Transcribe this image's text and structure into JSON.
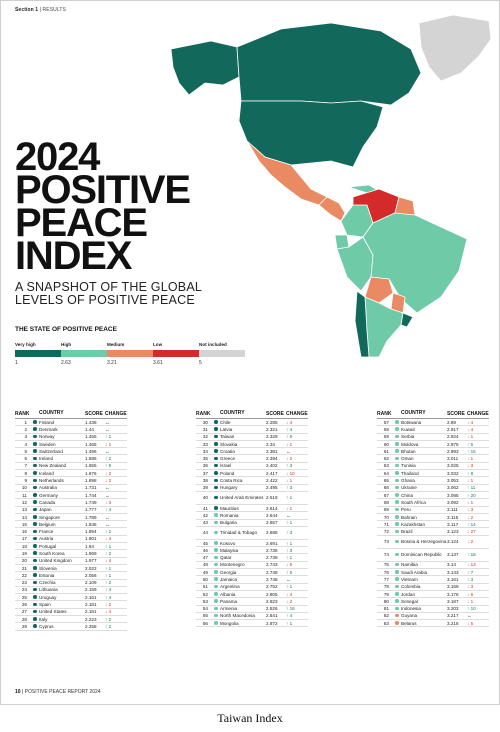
{
  "header": {
    "section": "Section 1",
    "separator": "|",
    "name": "RESULTS"
  },
  "title": {
    "line1": "2024",
    "line2": "POSITIVE",
    "line3": "PEACE",
    "line4": "INDEX"
  },
  "subtitle": {
    "line1": "A SNAPSHOT OF THE GLOBAL",
    "line2": "LEVELS OF POSITIVE PEACE"
  },
  "state_header": "THE STATE OF POSITIVE PEACE",
  "legend": {
    "labels": [
      "Very high",
      "High",
      "Medium",
      "Low",
      "Not included"
    ],
    "colors": [
      "#12695b",
      "#6fcaa8",
      "#e98a63",
      "#d42a2a",
      "#d4d4d4"
    ],
    "values": [
      "1",
      "2.63",
      "3.21",
      "3.61",
      "5"
    ]
  },
  "table_headers": {
    "rank": "RANK",
    "country": "COUNTRY",
    "score": "SCORE",
    "change": "CHANGE"
  },
  "columns": [
    [
      {
        "rank": "1",
        "country": "Finland",
        "score": "1.438",
        "change": "↔",
        "dir": "eq",
        "tier": 0
      },
      {
        "rank": "2",
        "country": "Denmark",
        "score": "1.44",
        "change": "↔",
        "dir": "eq",
        "tier": 0
      },
      {
        "rank": "3",
        "country": "Norway",
        "score": "1.455",
        "change": "↑ 1",
        "dir": "up",
        "tier": 0
      },
      {
        "rank": "4",
        "country": "Sweden",
        "score": "1.465",
        "change": "↓ 1",
        "dir": "down",
        "tier": 0
      },
      {
        "rank": "5",
        "country": "Switzerland",
        "score": "1.496",
        "change": "↔",
        "dir": "eq",
        "tier": 0
      },
      {
        "rank": "6",
        "country": "Ireland",
        "score": "1.586",
        "change": "↑ 2",
        "dir": "up",
        "tier": 0
      },
      {
        "rank": "7",
        "country": "New Zealand",
        "score": "1.655",
        "change": "↑ 5",
        "dir": "up",
        "tier": 0
      },
      {
        "rank": "8",
        "country": "Iceland",
        "score": "1.676",
        "change": "↓ 2",
        "dir": "down",
        "tier": 0
      },
      {
        "rank": "9",
        "country": "Netherlands",
        "score": "1.698",
        "change": "↓ 2",
        "dir": "down",
        "tier": 0
      },
      {
        "rank": "10",
        "country": "Australia",
        "score": "1.731",
        "change": "↔",
        "dir": "eq",
        "tier": 0
      },
      {
        "rank": "11",
        "country": "Germany",
        "score": "1.744",
        "change": "↔",
        "dir": "eq",
        "tier": 0
      },
      {
        "rank": "12",
        "country": "Canada",
        "score": "1.749",
        "change": "↓ 3",
        "dir": "down",
        "tier": 0
      },
      {
        "rank": "13",
        "country": "Japan",
        "score": "1.777",
        "change": "↑ 4",
        "dir": "up",
        "tier": 0
      },
      {
        "rank": "14",
        "country": "Singapore",
        "score": "1.789",
        "change": "↔",
        "dir": "eq",
        "tier": 0
      },
      {
        "rank": "15",
        "country": "Belgium",
        "score": "1.845",
        "change": "↔",
        "dir": "eq",
        "tier": 0
      },
      {
        "rank": "16",
        "country": "France",
        "score": "1.894",
        "change": "↑ 2",
        "dir": "up",
        "tier": 0
      },
      {
        "rank": "17",
        "country": "Austria",
        "score": "1.901",
        "change": "↓ 4",
        "dir": "down",
        "tier": 0
      },
      {
        "rank": "18",
        "country": "Portugal",
        "score": "1.94",
        "change": "↑ 1",
        "dir": "up",
        "tier": 0
      },
      {
        "rank": "19",
        "country": "South Korea",
        "score": "1.969",
        "change": "↑ 2",
        "dir": "up",
        "tier": 0
      },
      {
        "rank": "20",
        "country": "United Kingdom",
        "score": "1.977",
        "change": "↓ 4",
        "dir": "down",
        "tier": 0
      },
      {
        "rank": "21",
        "country": "Slovenia",
        "score": "2.022",
        "change": "↑ 1",
        "dir": "up",
        "tier": 0
      },
      {
        "rank": "22",
        "country": "Estonia",
        "score": "2.056",
        "change": "↑ 1",
        "dir": "up",
        "tier": 0
      },
      {
        "rank": "23",
        "country": "Czechia",
        "score": "2.109",
        "change": "↑ 2",
        "dir": "up",
        "tier": 0
      },
      {
        "rank": "24",
        "country": "Lithuania",
        "score": "2.159",
        "change": "↑ 4",
        "dir": "up",
        "tier": 0
      },
      {
        "rank": "25",
        "country": "Uruguay",
        "score": "2.161",
        "change": "↑ 4",
        "dir": "up",
        "tier": 0
      },
      {
        "rank": "26",
        "country": "Spain",
        "score": "2.181",
        "change": "↓ 2",
        "dir": "down",
        "tier": 0
      },
      {
        "rank": "27",
        "country": "United States",
        "score": "2.181",
        "change": "↓ 4",
        "dir": "down",
        "tier": 0
      },
      {
        "rank": "28",
        "country": "Italy",
        "score": "2.223",
        "change": "↑ 2",
        "dir": "up",
        "tier": 0
      },
      {
        "rank": "29",
        "country": "Cyprus",
        "score": "2.258",
        "change": "↑ 2",
        "dir": "up",
        "tier": 0
      }
    ],
    [
      {
        "rank": "30",
        "country": "Chile",
        "score": "2.285",
        "change": "↓ 4",
        "dir": "down",
        "tier": 0
      },
      {
        "rank": "31",
        "country": "Latvia",
        "score": "2.321",
        "change": "↑ 4",
        "dir": "up",
        "tier": 0
      },
      {
        "rank": "32",
        "country": "Taiwan",
        "score": "2.329",
        "change": "↑ 6",
        "dir": "up",
        "tier": 0
      },
      {
        "rank": "33",
        "country": "Slovakia",
        "score": "2.34",
        "change": "↓ 1",
        "dir": "down",
        "tier": 0
      },
      {
        "rank": "34",
        "country": "Croatia",
        "score": "2.381",
        "change": "↔",
        "dir": "eq",
        "tier": 0
      },
      {
        "rank": "35",
        "country": "Greece",
        "score": "2.394",
        "change": "↓ 2",
        "dir": "down",
        "tier": 0
      },
      {
        "rank": "36",
        "country": "Israel",
        "score": "2.402",
        "change": "↑ 3",
        "dir": "up",
        "tier": 0
      },
      {
        "rank": "37",
        "country": "Poland",
        "score": "2.417",
        "change": "↓ 10",
        "dir": "down",
        "tier": 0
      },
      {
        "rank": "38",
        "country": "Costa Rica",
        "score": "2.422",
        "change": "↓ 1",
        "dir": "down",
        "tier": 0
      },
      {
        "rank": "39",
        "country": "Hungary",
        "score": "2.495",
        "change": "↑ 3",
        "dir": "up",
        "tier": 0
      },
      {
        "rank": "40",
        "country": "United Arab Emirates",
        "score": "2.518",
        "change": "↑ 1",
        "dir": "up",
        "tier": 0,
        "tall": true
      },
      {
        "rank": "41",
        "country": "Mauritius",
        "score": "2.614",
        "change": "↓ 1",
        "dir": "down",
        "tier": 0
      },
      {
        "rank": "42",
        "country": "Romania",
        "score": "2.644",
        "change": "↔",
        "dir": "eq",
        "tier": 1
      },
      {
        "rank": "43",
        "country": "Bulgaria",
        "score": "2.657",
        "change": "↑ 1",
        "dir": "up",
        "tier": 1
      },
      {
        "rank": "44",
        "country": "Trinidad & Tobago",
        "score": "2.688",
        "change": "↑ 3",
        "dir": "up",
        "tier": 1,
        "tall": true
      },
      {
        "rank": "45",
        "country": "Kosovo",
        "score": "2.691",
        "change": "↑ 1",
        "dir": "up",
        "tier": 1
      },
      {
        "rank": "46",
        "country": "Malaysia",
        "score": "2.738",
        "change": "↑ 3",
        "dir": "up",
        "tier": 1
      },
      {
        "rank": "47",
        "country": "Qatar",
        "score": "2.739",
        "change": "↑ 1",
        "dir": "up",
        "tier": 1
      },
      {
        "rank": "48",
        "country": "Montenegro",
        "score": "2.743",
        "change": "↓ 5",
        "dir": "down",
        "tier": 1
      },
      {
        "rank": "49",
        "country": "Georgia",
        "score": "2.748",
        "change": "↑ 6",
        "dir": "up",
        "tier": 1
      },
      {
        "rank": "50",
        "country": "Jamaica",
        "score": "2.748",
        "change": "↔",
        "dir": "eq",
        "tier": 1
      },
      {
        "rank": "51",
        "country": "Argentina",
        "score": "2.752",
        "change": "↑ 1",
        "dir": "up",
        "tier": 1
      },
      {
        "rank": "52",
        "country": "Albania",
        "score": "2.805",
        "change": "↓ 4",
        "dir": "down",
        "tier": 1
      },
      {
        "rank": "53",
        "country": "Panama",
        "score": "2.823",
        "change": "↓ 2",
        "dir": "down",
        "tier": 1
      },
      {
        "rank": "54",
        "country": "Armenia",
        "score": "2.826",
        "change": "↑ 16",
        "dir": "up",
        "tier": 1
      },
      {
        "rank": "55",
        "country": "North Macedonia",
        "score": "2.841",
        "change": "↑ 4",
        "dir": "up",
        "tier": 1
      },
      {
        "rank": "56",
        "country": "Mongolia",
        "score": "2.872",
        "change": "↑ 1",
        "dir": "up",
        "tier": 1
      }
    ],
    [
      {
        "rank": "57",
        "country": "Botswana",
        "score": "2.89",
        "change": "↓ 4",
        "dir": "down",
        "tier": 1
      },
      {
        "rank": "58",
        "country": "Kuwait",
        "score": "2.917",
        "change": "↓ 4",
        "dir": "down",
        "tier": 1
      },
      {
        "rank": "59",
        "country": "Serbia",
        "score": "2.924",
        "change": "↓ 1",
        "dir": "down",
        "tier": 1
      },
      {
        "rank": "60",
        "country": "Moldova",
        "score": "2.975",
        "change": "↑ 5",
        "dir": "up",
        "tier": 1
      },
      {
        "rank": "61",
        "country": "Bhutan",
        "score": "2.993",
        "change": "↑ 15",
        "dir": "up",
        "tier": 1
      },
      {
        "rank": "62",
        "country": "Oman",
        "score": "3.011",
        "change": "↓ 1",
        "dir": "down",
        "tier": 1
      },
      {
        "rank": "63",
        "country": "Tunisia",
        "score": "3.025",
        "change": "↓ 3",
        "dir": "down",
        "tier": 1
      },
      {
        "rank": "64",
        "country": "Thailand",
        "score": "3.032",
        "change": "↑ 8",
        "dir": "up",
        "tier": 1
      },
      {
        "rank": "65",
        "country": "Ghana",
        "score": "3.053",
        "change": "↓ 1",
        "dir": "down",
        "tier": 1
      },
      {
        "rank": "66",
        "country": "Ukraine",
        "score": "3.062",
        "change": "↑ 11",
        "dir": "up",
        "tier": 1
      },
      {
        "rank": "67",
        "country": "China",
        "score": "3.085",
        "change": "↑ 20",
        "dir": "up",
        "tier": 1
      },
      {
        "rank": "68",
        "country": "South Africa",
        "score": "3.092",
        "change": "↓ 1",
        "dir": "down",
        "tier": 1
      },
      {
        "rank": "69",
        "country": "Peru",
        "score": "3.111",
        "change": "↓ 3",
        "dir": "down",
        "tier": 1
      },
      {
        "rank": "70",
        "country": "Bahrain",
        "score": "3.115",
        "change": "↓ 2",
        "dir": "down",
        "tier": 1
      },
      {
        "rank": "71",
        "country": "Kazakhstan",
        "score": "3.117",
        "change": "↑ 14",
        "dir": "up",
        "tier": 1
      },
      {
        "rank": "72",
        "country": "Brazil",
        "score": "3.123",
        "change": "↓ 27",
        "dir": "down",
        "tier": 1
      },
      {
        "rank": "73",
        "country": "Bosnia & Herzegovina",
        "score": "3.124",
        "change": "↓ 2",
        "dir": "down",
        "tier": 1,
        "tall": true
      },
      {
        "rank": "74",
        "country": "Dominican Republic",
        "score": "3.137",
        "change": "↑ 18",
        "dir": "up",
        "tier": 1,
        "tall": true
      },
      {
        "rank": "75",
        "country": "Namibia",
        "score": "3.14",
        "change": "↓ 13",
        "dir": "down",
        "tier": 1
      },
      {
        "rank": "76",
        "country": "Saudi Arabia",
        "score": "3.143",
        "change": "↑ 7",
        "dir": "up",
        "tier": 1
      },
      {
        "rank": "77",
        "country": "Vietnam",
        "score": "3.161",
        "change": "↑ 3",
        "dir": "up",
        "tier": 1
      },
      {
        "rank": "78",
        "country": "Colombia",
        "score": "3.169",
        "change": "↓ 3",
        "dir": "down",
        "tier": 1
      },
      {
        "rank": "79",
        "country": "Jordan",
        "score": "3.176",
        "change": "↓ 6",
        "dir": "down",
        "tier": 1
      },
      {
        "rank": "80",
        "country": "Senegal",
        "score": "3.187",
        "change": "↓ 1",
        "dir": "down",
        "tier": 1
      },
      {
        "rank": "81",
        "country": "Indonesia",
        "score": "3.203",
        "change": "↑ 10",
        "dir": "up",
        "tier": 1
      },
      {
        "rank": "82",
        "country": "Guyana",
        "score": "3.217",
        "change": "↔",
        "dir": "eq",
        "tier": 2
      },
      {
        "rank": "83",
        "country": "Belarus",
        "score": "3.218",
        "change": "↓ 5",
        "dir": "down",
        "tier": 2
      }
    ]
  ],
  "footer": {
    "page": "10",
    "separator": "|",
    "name": "POSITIVE PEACE REPORT 2024"
  },
  "caption": "Taiwan Index"
}
